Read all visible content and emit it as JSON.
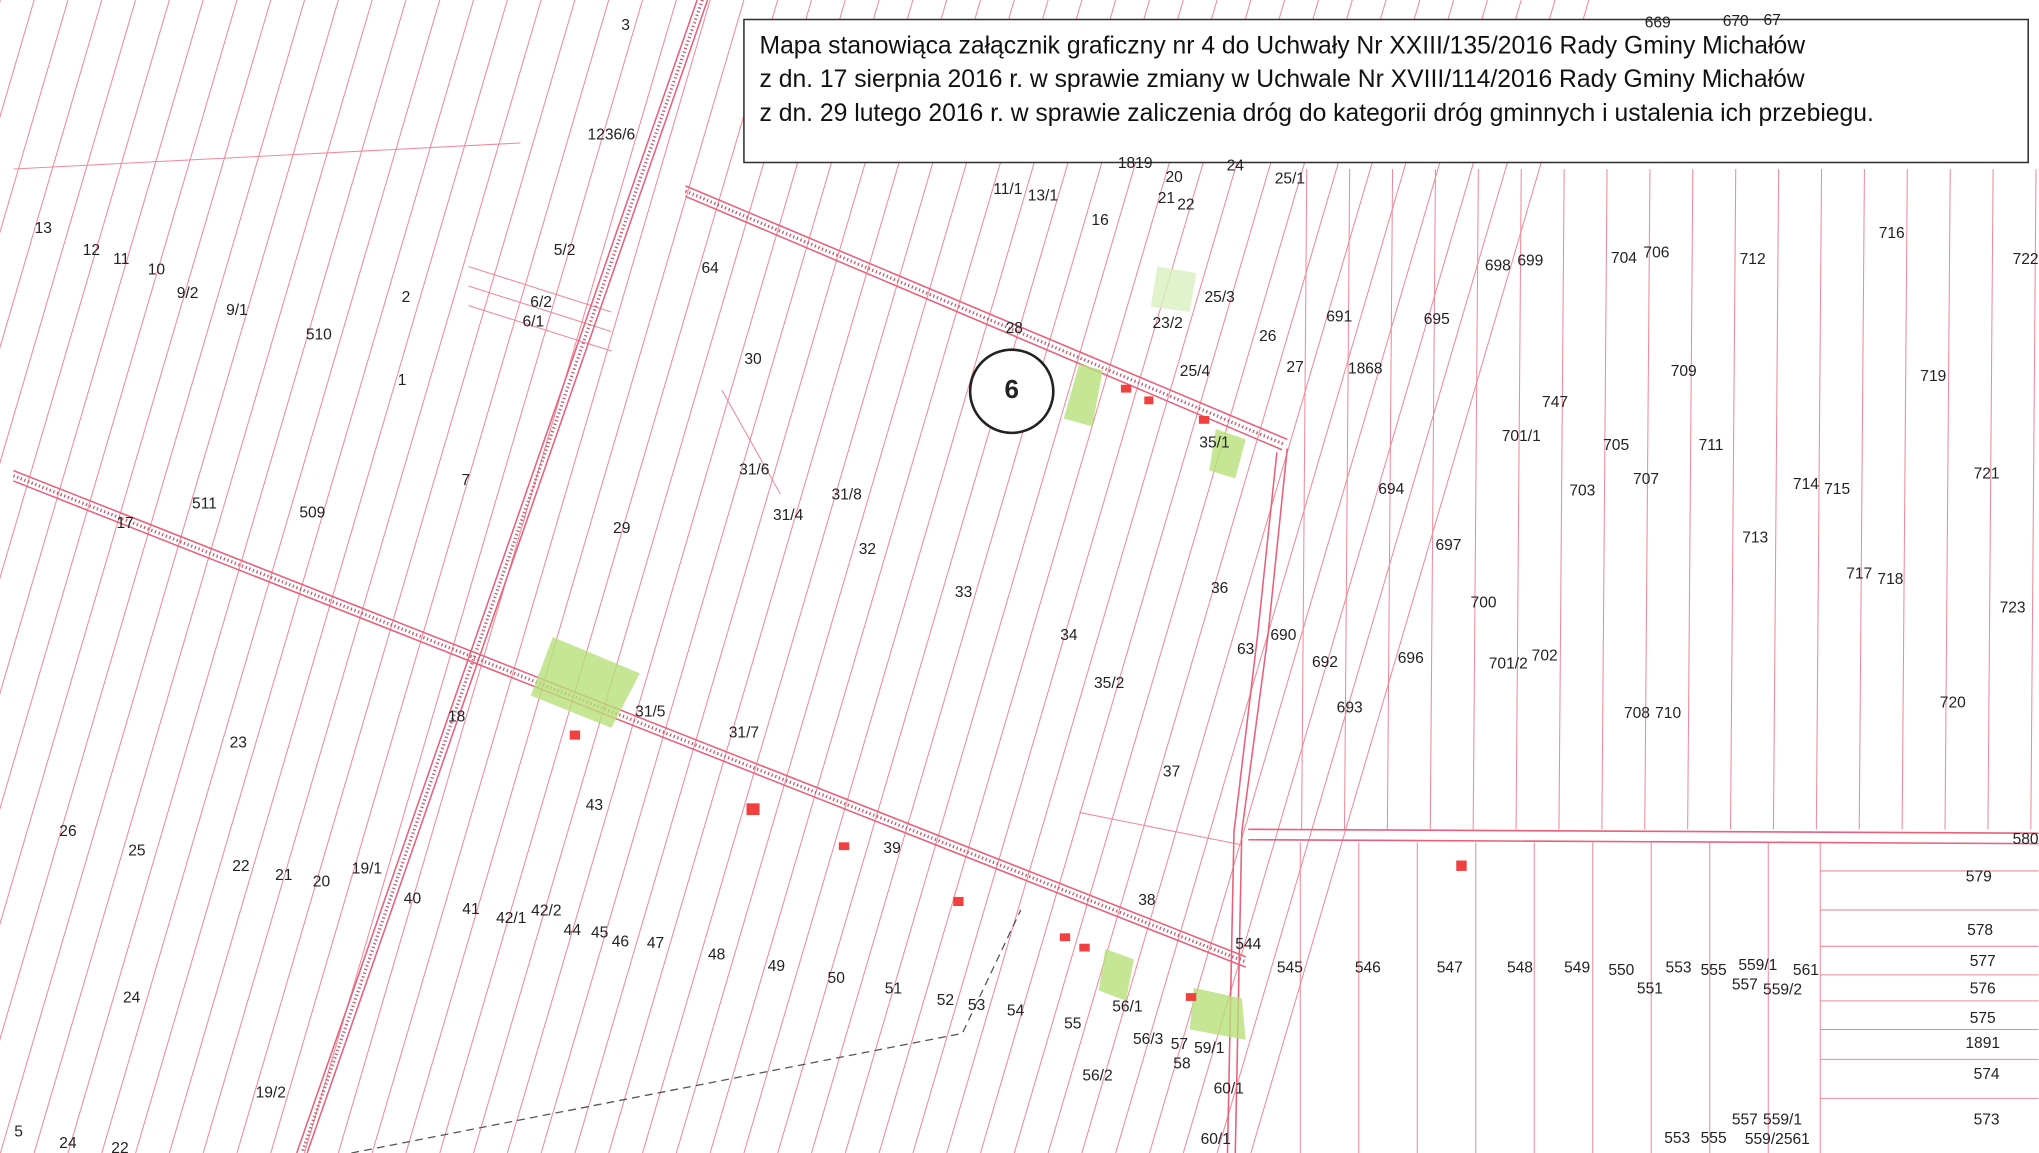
{
  "legend_box": {
    "lines": [
      "Mapa stanowiąca załącznik graficzny nr 4 do Uchwały Nr XXIII/135/2016 Rady Gminy Michałów",
      "z dn. 17 sierpnia 2016 r. w sprawie zmiany w Uchwale Nr XVIII/114/2016 Rady Gminy Michałów",
      "z dn. 29 lutego 2016 r. w sprawie zaliczenia dróg do kategorii dróg gminnych i ustalenia ich przebiegu."
    ]
  },
  "road_marker": "6",
  "parcels": [
    "3",
    "669",
    "670",
    "67",
    "1236/6",
    "13",
    "12",
    "11",
    "10",
    "9/2",
    "9/1",
    "510",
    "5/2",
    "2",
    "6/2",
    "6/1",
    "1",
    "64",
    "30",
    "28",
    "11/1",
    "13/1",
    "16",
    "1819",
    "20",
    "21",
    "22",
    "24",
    "25/1",
    "25/3",
    "23/2",
    "25/4",
    "26",
    "27",
    "691",
    "1868",
    "695",
    "698",
    "699",
    "704",
    "706",
    "712",
    "716",
    "722",
    "709",
    "719",
    "747",
    "701/1",
    "705",
    "711",
    "35/1",
    "7",
    "511",
    "509",
    "17",
    "29",
    "31/6",
    "31/4",
    "31/8",
    "32",
    "694",
    "703",
    "707",
    "714",
    "715",
    "721",
    "697",
    "713",
    "717",
    "718",
    "33",
    "36",
    "700",
    "723",
    "34",
    "690",
    "63",
    "692",
    "696",
    "701/2",
    "702",
    "35/2",
    "31/5",
    "18",
    "693",
    "708",
    "710",
    "720",
    "23",
    "31/7",
    "37",
    "43",
    "26",
    "25",
    "39",
    "580",
    "22",
    "21",
    "20",
    "19/1",
    "579",
    "40",
    "38",
    "41",
    "42/1",
    "42/2",
    "44",
    "45",
    "46",
    "47",
    "578",
    "544",
    "48",
    "49",
    "545",
    "546",
    "547",
    "548",
    "549",
    "550",
    "553",
    "555",
    "559/1",
    "561",
    "577",
    "50",
    "551",
    "557",
    "559/2",
    "576",
    "51",
    "52",
    "53",
    "54",
    "56/1",
    "24",
    "575",
    "55",
    "56/3",
    "57",
    "59/1",
    "1891",
    "58",
    "56/2",
    "574",
    "60/1",
    "19/2",
    "573",
    "5",
    "24",
    "22",
    "60/1",
    "557",
    "559/1",
    "553",
    "555",
    "559/2561"
  ]
}
